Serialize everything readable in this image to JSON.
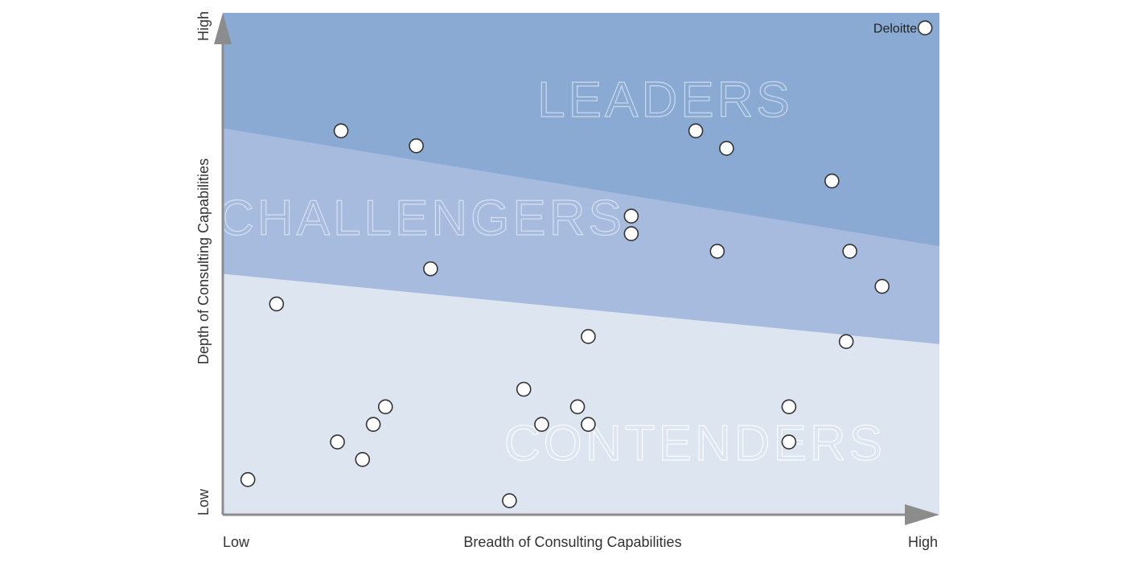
{
  "chart_data": {
    "type": "scatter",
    "xlabel": "Breadth of Consulting Capabilities",
    "ylabel": "Depth of Consulting Capabilities",
    "x_ticks": {
      "low": "Low",
      "high": "High"
    },
    "y_ticks": {
      "low": "Low",
      "high": "High"
    },
    "xlim": [
      0,
      100
    ],
    "ylim": [
      0,
      100
    ],
    "grid": false,
    "zones": [
      {
        "name": "CONTENDERS",
        "color": "#dde5f1",
        "boundary_start": [
          0,
          48
        ],
        "boundary_end": [
          100,
          34
        ]
      },
      {
        "name": "CHALLENGERS",
        "color": "#a7bbdf",
        "boundary_start": [
          0,
          77
        ],
        "boundary_end": [
          100,
          53.5
        ]
      },
      {
        "name": "LEADERS",
        "color": "#8aaad3"
      }
    ],
    "points": [
      {
        "x": 98.0,
        "y": 97.0,
        "label": "Deloitte"
      },
      {
        "x": 16.5,
        "y": 76.5,
        "label": ""
      },
      {
        "x": 27.0,
        "y": 73.5,
        "label": ""
      },
      {
        "x": 66.0,
        "y": 76.5,
        "label": ""
      },
      {
        "x": 70.3,
        "y": 73.0,
        "label": ""
      },
      {
        "x": 85.0,
        "y": 66.5,
        "label": ""
      },
      {
        "x": 57.0,
        "y": 59.5,
        "label": ""
      },
      {
        "x": 57.0,
        "y": 56.0,
        "label": ""
      },
      {
        "x": 69.0,
        "y": 52.5,
        "label": ""
      },
      {
        "x": 87.5,
        "y": 52.5,
        "label": ""
      },
      {
        "x": 29.0,
        "y": 49.0,
        "label": ""
      },
      {
        "x": 92.0,
        "y": 45.5,
        "label": ""
      },
      {
        "x": 7.5,
        "y": 42.0,
        "label": ""
      },
      {
        "x": 51.0,
        "y": 35.5,
        "label": ""
      },
      {
        "x": 87.0,
        "y": 34.5,
        "label": ""
      },
      {
        "x": 42.0,
        "y": 25.0,
        "label": ""
      },
      {
        "x": 22.7,
        "y": 21.5,
        "label": ""
      },
      {
        "x": 49.5,
        "y": 21.5,
        "label": ""
      },
      {
        "x": 79.0,
        "y": 21.5,
        "label": ""
      },
      {
        "x": 21.0,
        "y": 18.0,
        "label": ""
      },
      {
        "x": 44.5,
        "y": 18.0,
        "label": ""
      },
      {
        "x": 51.0,
        "y": 18.0,
        "label": ""
      },
      {
        "x": 16.0,
        "y": 14.5,
        "label": ""
      },
      {
        "x": 79.0,
        "y": 14.5,
        "label": ""
      },
      {
        "x": 19.5,
        "y": 11.0,
        "label": ""
      },
      {
        "x": 3.5,
        "y": 7.0,
        "label": ""
      },
      {
        "x": 40.0,
        "y": 2.8,
        "label": ""
      }
    ]
  },
  "colors": {
    "axis": "#8c8c8c",
    "point_stroke": "#333333",
    "zone_text": "#ffffff"
  }
}
